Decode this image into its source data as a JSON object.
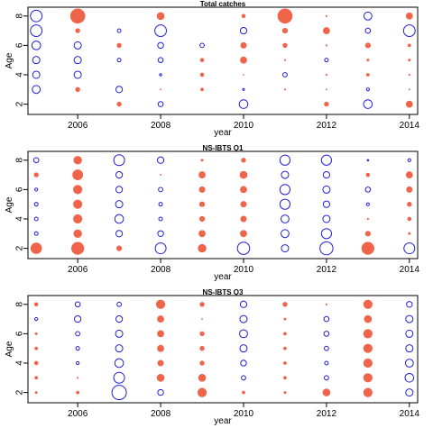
{
  "colors": {
    "positive": "#f0644a",
    "negative": "#1f1fd6",
    "axis": "#000000",
    "background": "#ffffff"
  },
  "chart_data": [
    {
      "type": "scatter",
      "title": "Total catches",
      "xlabel": "year",
      "ylabel": "Age",
      "xlim": [
        2004.8,
        2014.2
      ],
      "ylim": [
        1.3,
        8.6
      ],
      "xticks": [
        2006,
        2008,
        2010,
        2012,
        2014
      ],
      "yticks": [
        2,
        4,
        6,
        8
      ],
      "years": [
        2005,
        2006,
        2007,
        2008,
        2009,
        2010,
        2011,
        2012,
        2013,
        2014
      ],
      "ages": [
        2,
        3,
        4,
        5,
        6,
        7,
        8
      ],
      "residuals": [
        [
          null,
          null,
          0.3,
          0.35,
          null,
          0.6,
          null,
          0.3,
          0.6,
          0.45
        ],
        [
          0.55,
          0.3,
          0.45,
          0.05,
          0.2,
          0.13,
          0.1,
          0.0,
          0.2,
          0.08
        ],
        [
          0.5,
          0.5,
          null,
          0.15,
          0.25,
          0.03,
          0.3,
          0.1,
          0.2,
          0.1
        ],
        [
          0.5,
          0.5,
          0.25,
          0.35,
          0.25,
          0.45,
          0.1,
          0.25,
          0.15,
          0.15
        ],
        [
          0.6,
          0.5,
          0.3,
          0.4,
          0.3,
          0.4,
          0.3,
          0.1,
          0.35,
          0.2
        ],
        [
          0.8,
          0.3,
          0.25,
          0.8,
          null,
          0.45,
          0.35,
          0.45,
          0.35,
          0.8
        ],
        [
          0.8,
          1.0,
          null,
          0.5,
          null,
          0.25,
          1.0,
          0.1,
          0.55,
          0.45
        ]
      ],
      "signs": [
        [
          null,
          null,
          1,
          -1,
          null,
          -1,
          null,
          1,
          -1,
          1
        ],
        [
          -1,
          1,
          -1,
          1,
          1,
          -1,
          1,
          1,
          -1,
          1
        ],
        [
          -1,
          -1,
          null,
          -1,
          1,
          1,
          -1,
          1,
          1,
          1
        ],
        [
          -1,
          -1,
          -1,
          -1,
          1,
          1,
          1,
          -1,
          1,
          1
        ],
        [
          -1,
          -1,
          1,
          -1,
          -1,
          1,
          1,
          1,
          1,
          1
        ],
        [
          -1,
          1,
          -1,
          -1,
          null,
          -1,
          1,
          1,
          -1,
          -1
        ],
        [
          -1,
          1,
          null,
          1,
          null,
          1,
          1,
          1,
          -1,
          1
        ]
      ]
    },
    {
      "type": "scatter",
      "title": "NS-IBTS Q1",
      "xlabel": "year",
      "ylabel": "Age",
      "xlim": [
        2004.8,
        2014.2
      ],
      "ylim": [
        1.3,
        8.6
      ],
      "xticks": [
        2006,
        2008,
        2010,
        2012,
        2014
      ],
      "yticks": [
        2,
        4,
        6,
        8
      ],
      "years": [
        2005,
        2006,
        2007,
        2008,
        2009,
        2010,
        2011,
        2012,
        2013,
        2014
      ],
      "ages": [
        2,
        3,
        4,
        5,
        6,
        7,
        8
      ],
      "residuals": [
        [
          0.75,
          0.85,
          0.35,
          0.75,
          0.55,
          0.85,
          0.5,
          0.9,
          0.85,
          0.75
        ],
        [
          0.25,
          0.55,
          0.45,
          0.4,
          0.45,
          0.45,
          0.55,
          0.7,
          0.35,
          0.15
        ],
        [
          0.25,
          0.6,
          0.6,
          0.25,
          0.35,
          0.4,
          0.55,
          0.5,
          0.1,
          0.25
        ],
        [
          0.25,
          0.6,
          0.5,
          0.25,
          0.35,
          0.4,
          0.7,
          0.45,
          0.2,
          0.3
        ],
        [
          0.2,
          0.6,
          0.45,
          0.3,
          0.4,
          0.45,
          0.7,
          0.5,
          0.35,
          0.4
        ],
        [
          0.3,
          0.7,
          0.45,
          0.05,
          0.45,
          0.5,
          0.5,
          0.45,
          0.25,
          0.45
        ],
        [
          0.35,
          0.55,
          0.75,
          0.45,
          0.15,
          0.3,
          0.7,
          0.7,
          0.1,
          0.2
        ]
      ],
      "signs": [
        [
          1,
          1,
          1,
          -1,
          1,
          -1,
          -1,
          -1,
          1,
          -1
        ],
        [
          -1,
          1,
          -1,
          -1,
          1,
          1,
          -1,
          -1,
          1,
          1
        ],
        [
          -1,
          1,
          -1,
          -1,
          1,
          1,
          -1,
          -1,
          1,
          1
        ],
        [
          -1,
          1,
          -1,
          -1,
          1,
          1,
          -1,
          -1,
          -1,
          1
        ],
        [
          -1,
          1,
          -1,
          -1,
          1,
          1,
          -1,
          -1,
          -1,
          1
        ],
        [
          1,
          1,
          -1,
          1,
          1,
          1,
          -1,
          -1,
          1,
          1
        ],
        [
          -1,
          1,
          -1,
          -1,
          1,
          1,
          -1,
          -1,
          -1,
          -1
        ]
      ]
    },
    {
      "type": "scatter",
      "title": "NS-IBTS Q3",
      "xlabel": "year",
      "ylabel": "Age",
      "xlim": [
        2004.8,
        2014.2
      ],
      "ylim": [
        1.3,
        8.6
      ],
      "xticks": [
        2006,
        2008,
        2010,
        2012,
        2014
      ],
      "yticks": [
        2,
        4,
        6,
        8
      ],
      "years": [
        2005,
        2006,
        2007,
        2008,
        2009,
        2010,
        2011,
        2012,
        2013,
        2014
      ],
      "ages": [
        2,
        3,
        4,
        5,
        6,
        7,
        8
      ],
      "residuals": [
        [
          0.15,
          0.2,
          1.0,
          0.4,
          0.6,
          0.2,
          0.15,
          0.5,
          0.6,
          0.5
        ],
        [
          0.2,
          0.1,
          0.75,
          0.5,
          0.5,
          0.3,
          0.2,
          0.3,
          0.6,
          0.6
        ],
        [
          0.25,
          0.2,
          0.6,
          0.4,
          0.3,
          0.4,
          0.2,
          0.25,
          0.6,
          0.55
        ],
        [
          0.2,
          0.25,
          0.5,
          0.45,
          0.3,
          0.5,
          0.2,
          0.3,
          0.6,
          0.5
        ],
        [
          0.15,
          0.3,
          0.5,
          0.45,
          0.3,
          0.55,
          0.2,
          0.35,
          0.6,
          0.5
        ],
        [
          0.2,
          0.45,
          0.45,
          0.45,
          0.05,
          0.5,
          0.15,
          0.35,
          0.5,
          0.5
        ],
        [
          0.25,
          0.35,
          0.3,
          0.6,
          0.3,
          0.45,
          0.3,
          0.1,
          0.6,
          0.4
        ]
      ],
      "signs": [
        [
          1,
          1,
          -1,
          -1,
          1,
          1,
          1,
          1,
          1,
          -1
        ],
        [
          1,
          1,
          -1,
          1,
          1,
          -1,
          1,
          -1,
          1,
          -1
        ],
        [
          1,
          -1,
          -1,
          1,
          1,
          -1,
          1,
          -1,
          1,
          -1
        ],
        [
          1,
          -1,
          -1,
          1,
          1,
          -1,
          1,
          -1,
          1,
          -1
        ],
        [
          1,
          -1,
          -1,
          1,
          1,
          -1,
          1,
          -1,
          1,
          -1
        ],
        [
          -1,
          -1,
          -1,
          1,
          1,
          -1,
          1,
          -1,
          1,
          -1
        ],
        [
          1,
          -1,
          -1,
          1,
          1,
          -1,
          1,
          1,
          1,
          -1
        ]
      ]
    }
  ]
}
